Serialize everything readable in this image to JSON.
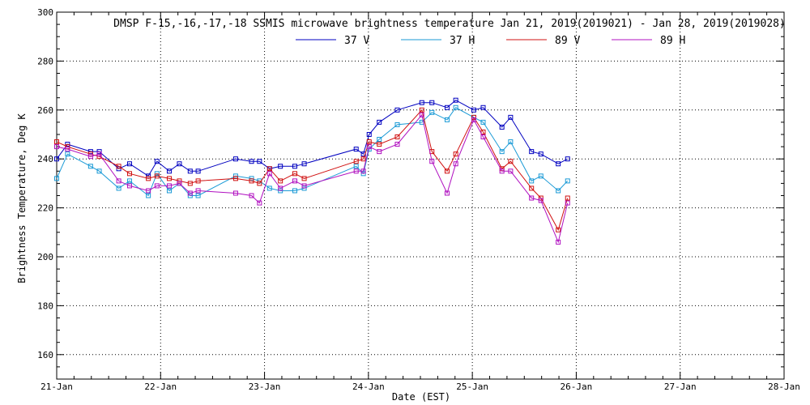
{
  "chart_data": {
    "type": "line",
    "title": "DMSP F-15,-16,-17,-18 SSMIS microwave brightness temperature Jan 21, 2019(2019021) - Jan 28, 2019(2019028)",
    "xlabel": "Date (EST)",
    "ylabel": "Brightness Temperature, Deg K",
    "x_tick_labels": [
      "21-Jan",
      "22-Jan",
      "23-Jan",
      "24-Jan",
      "25-Jan",
      "26-Jan",
      "27-Jan",
      "28-Jan"
    ],
    "y_tick_labels": [
      "160",
      "180",
      "200",
      "220",
      "240",
      "260",
      "280",
      "300"
    ],
    "xlim": [
      "2019-01-21T00:00",
      "2019-01-28T00:00"
    ],
    "ylim": [
      150,
      300
    ],
    "grid": true,
    "legend_position": "top-center",
    "series": [
      {
        "name": "37 V",
        "color": "#0000c0",
        "points": [
          [
            "2019-01-21T00:00",
            240
          ],
          [
            "2019-01-21T02:30",
            246
          ],
          [
            "2019-01-21T07:50",
            243
          ],
          [
            "2019-01-21T09:50",
            243
          ],
          [
            "2019-01-21T14:20",
            236
          ],
          [
            "2019-01-21T16:50",
            238
          ],
          [
            "2019-01-21T21:10",
            233
          ],
          [
            "2019-01-21T23:10",
            239
          ],
          [
            "2019-01-22T02:00",
            235
          ],
          [
            "2019-01-22T04:20",
            238
          ],
          [
            "2019-01-22T06:50",
            235
          ],
          [
            "2019-01-22T08:40",
            235
          ],
          [
            "2019-01-22T17:20",
            240
          ],
          [
            "2019-01-22T21:00",
            239
          ],
          [
            "2019-01-22T22:50",
            239
          ],
          [
            "2019-01-23T01:10",
            236
          ],
          [
            "2019-01-23T03:40",
            237
          ],
          [
            "2019-01-23T07:00",
            237
          ],
          [
            "2019-01-23T09:10",
            238
          ],
          [
            "2019-01-23T21:10",
            244
          ],
          [
            "2019-01-23T22:50",
            242
          ],
          [
            "2019-01-24T00:10",
            250
          ],
          [
            "2019-01-24T02:30",
            255
          ],
          [
            "2019-01-24T06:40",
            260
          ],
          [
            "2019-01-24T12:20",
            263
          ],
          [
            "2019-01-24T14:40",
            263
          ],
          [
            "2019-01-24T18:10",
            261
          ],
          [
            "2019-01-24T20:10",
            264
          ],
          [
            "2019-01-25T00:20",
            260
          ],
          [
            "2019-01-25T02:30",
            261
          ],
          [
            "2019-01-25T06:50",
            253
          ],
          [
            "2019-01-25T08:50",
            257
          ],
          [
            "2019-01-25T13:40",
            243
          ],
          [
            "2019-01-25T15:50",
            242
          ],
          [
            "2019-01-25T19:50",
            238
          ],
          [
            "2019-01-25T22:00",
            240
          ]
        ]
      },
      {
        "name": "37 H",
        "color": "#1a9ad6",
        "points": [
          [
            "2019-01-21T00:00",
            232
          ],
          [
            "2019-01-21T02:30",
            242
          ],
          [
            "2019-01-21T07:50",
            237
          ],
          [
            "2019-01-21T09:50",
            235
          ],
          [
            "2019-01-21T14:20",
            228
          ],
          [
            "2019-01-21T16:50",
            231
          ],
          [
            "2019-01-21T21:10",
            225
          ],
          [
            "2019-01-21T23:10",
            234
          ],
          [
            "2019-01-22T02:00",
            227
          ],
          [
            "2019-01-22T04:20",
            230
          ],
          [
            "2019-01-22T06:50",
            225
          ],
          [
            "2019-01-22T08:40",
            225
          ],
          [
            "2019-01-22T17:20",
            233
          ],
          [
            "2019-01-22T21:00",
            232
          ],
          [
            "2019-01-22T22:50",
            231
          ],
          [
            "2019-01-23T01:10",
            228
          ],
          [
            "2019-01-23T03:40",
            227
          ],
          [
            "2019-01-23T07:00",
            227
          ],
          [
            "2019-01-23T09:10",
            228
          ],
          [
            "2019-01-23T21:10",
            237
          ],
          [
            "2019-01-23T22:50",
            234
          ],
          [
            "2019-01-24T00:10",
            244
          ],
          [
            "2019-01-24T02:30",
            248
          ],
          [
            "2019-01-24T06:40",
            254
          ],
          [
            "2019-01-24T12:20",
            255
          ],
          [
            "2019-01-24T14:40",
            259
          ],
          [
            "2019-01-24T18:10",
            256
          ],
          [
            "2019-01-24T20:10",
            261
          ],
          [
            "2019-01-25T00:20",
            257
          ],
          [
            "2019-01-25T02:30",
            255
          ],
          [
            "2019-01-25T06:50",
            243
          ],
          [
            "2019-01-25T08:50",
            247
          ],
          [
            "2019-01-25T13:40",
            231
          ],
          [
            "2019-01-25T15:50",
            233
          ],
          [
            "2019-01-25T19:50",
            227
          ],
          [
            "2019-01-25T22:00",
            231
          ]
        ]
      },
      {
        "name": "89 V",
        "color": "#d01010",
        "points": [
          [
            "2019-01-21T00:00",
            247
          ],
          [
            "2019-01-21T02:30",
            245
          ],
          [
            "2019-01-21T07:50",
            242
          ],
          [
            "2019-01-21T09:50",
            241
          ],
          [
            "2019-01-21T14:20",
            237
          ],
          [
            "2019-01-21T16:50",
            234
          ],
          [
            "2019-01-21T21:10",
            232
          ],
          [
            "2019-01-21T23:10",
            233
          ],
          [
            "2019-01-22T02:00",
            232
          ],
          [
            "2019-01-22T04:20",
            231
          ],
          [
            "2019-01-22T06:50",
            230
          ],
          [
            "2019-01-22T08:40",
            231
          ],
          [
            "2019-01-22T17:20",
            232
          ],
          [
            "2019-01-22T21:00",
            231
          ],
          [
            "2019-01-22T22:50",
            230
          ],
          [
            "2019-01-23T01:10",
            236
          ],
          [
            "2019-01-23T03:40",
            231
          ],
          [
            "2019-01-23T07:00",
            234
          ],
          [
            "2019-01-23T09:10",
            232
          ],
          [
            "2019-01-23T21:10",
            239
          ],
          [
            "2019-01-23T22:50",
            240
          ],
          [
            "2019-01-24T00:10",
            247
          ],
          [
            "2019-01-24T02:30",
            246
          ],
          [
            "2019-01-24T06:40",
            249
          ],
          [
            "2019-01-24T12:20",
            260
          ],
          [
            "2019-01-24T14:40",
            243
          ],
          [
            "2019-01-24T18:10",
            235
          ],
          [
            "2019-01-24T20:10",
            242
          ],
          [
            "2019-01-25T00:20",
            257
          ],
          [
            "2019-01-25T02:30",
            251
          ],
          [
            "2019-01-25T06:50",
            236
          ],
          [
            "2019-01-25T08:50",
            239
          ],
          [
            "2019-01-25T13:40",
            228
          ],
          [
            "2019-01-25T15:50",
            224
          ],
          [
            "2019-01-25T19:50",
            211
          ],
          [
            "2019-01-25T22:00",
            224
          ]
        ]
      },
      {
        "name": "89 H",
        "color": "#b010c0",
        "points": [
          [
            "2019-01-21T00:00",
            245
          ],
          [
            "2019-01-21T02:30",
            244
          ],
          [
            "2019-01-21T07:50",
            241
          ],
          [
            "2019-01-21T09:50",
            242
          ],
          [
            "2019-01-21T14:20",
            231
          ],
          [
            "2019-01-21T16:50",
            229
          ],
          [
            "2019-01-21T21:10",
            227
          ],
          [
            "2019-01-21T23:10",
            229
          ],
          [
            "2019-01-22T02:00",
            229
          ],
          [
            "2019-01-22T04:20",
            230
          ],
          [
            "2019-01-22T06:50",
            226
          ],
          [
            "2019-01-22T08:40",
            227
          ],
          [
            "2019-01-22T17:20",
            226
          ],
          [
            "2019-01-22T21:00",
            225
          ],
          [
            "2019-01-22T22:50",
            222
          ],
          [
            "2019-01-23T01:10",
            234
          ],
          [
            "2019-01-23T03:40",
            228
          ],
          [
            "2019-01-23T07:00",
            231
          ],
          [
            "2019-01-23T09:10",
            229
          ],
          [
            "2019-01-23T21:10",
            235
          ],
          [
            "2019-01-23T22:50",
            235
          ],
          [
            "2019-01-24T00:10",
            245
          ],
          [
            "2019-01-24T02:30",
            243
          ],
          [
            "2019-01-24T06:40",
            246
          ],
          [
            "2019-01-24T12:20",
            258
          ],
          [
            "2019-01-24T14:40",
            239
          ],
          [
            "2019-01-24T18:10",
            226
          ],
          [
            "2019-01-24T20:10",
            238
          ],
          [
            "2019-01-25T00:20",
            256
          ],
          [
            "2019-01-25T02:30",
            249
          ],
          [
            "2019-01-25T06:50",
            235
          ],
          [
            "2019-01-25T08:50",
            235
          ],
          [
            "2019-01-25T13:40",
            224
          ],
          [
            "2019-01-25T15:50",
            223
          ],
          [
            "2019-01-25T19:50",
            206
          ],
          [
            "2019-01-25T22:00",
            222
          ]
        ]
      }
    ]
  }
}
